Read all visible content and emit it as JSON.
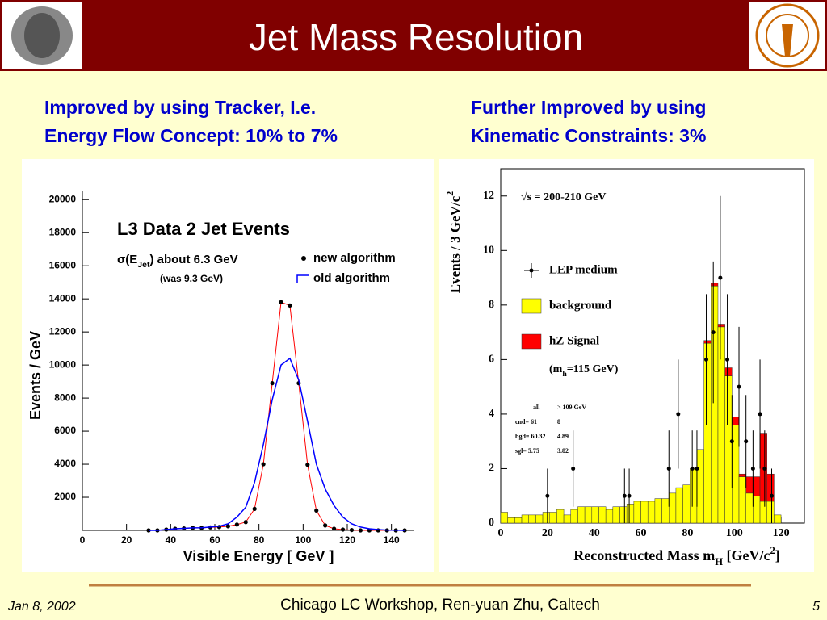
{
  "slide": {
    "title": "Jet Mass Resolution",
    "left_caption": [
      "Improved by using Tracker, I.e.",
      "Energy Flow Concept: 10% to 7%"
    ],
    "right_caption": [
      "Further Improved by using",
      "Kinematic Constraints: 3%"
    ],
    "footer": {
      "date": "Jan 8, 2002",
      "center": "Chicago LC Workshop, Ren-yuan Zhu, Caltech",
      "page": "5"
    }
  },
  "chart_data": [
    {
      "type": "line",
      "title": "L3 Data 2 Jet Events",
      "annotations": {
        "sigma": [
          "σ(E",
          "Jet",
          ") about 6.3 GeV"
        ],
        "was": "(was 9.3 GeV)"
      },
      "x_label": "Visible Energy [ GeV ]",
      "y_label": "Events / GeV",
      "x": [
        30,
        34,
        38,
        42,
        46,
        50,
        54,
        58,
        62,
        66,
        70,
        74,
        78,
        82,
        86,
        90,
        94,
        98,
        102,
        106,
        110,
        114,
        118,
        122,
        126,
        130,
        134,
        138,
        142,
        146
      ],
      "series": [
        {
          "name": "new algorithm",
          "color": "#000000",
          "fit_color": "#ff0000",
          "marker": "dot",
          "values": [
            0,
            0,
            50,
            100,
            120,
            150,
            150,
            180,
            200,
            250,
            350,
            500,
            1300,
            4000,
            8900,
            13800,
            13600,
            8900,
            3970,
            1200,
            300,
            100,
            50,
            20,
            0,
            0,
            0,
            0,
            0,
            0
          ]
        },
        {
          "name": "old algorithm",
          "color": "#0000ff",
          "marker": "none",
          "values": [
            0,
            0,
            50,
            100,
            120,
            150,
            160,
            200,
            250,
            400,
            800,
            1400,
            2900,
            5200,
            7900,
            10000,
            10400,
            9100,
            6600,
            4000,
            2500,
            1500,
            800,
            400,
            200,
            100,
            50,
            20,
            10,
            0
          ]
        }
      ],
      "xlim": [
        0,
        150
      ],
      "xticks": [
        0,
        20,
        40,
        60,
        80,
        100,
        120,
        140
      ],
      "ylim": [
        0,
        20500
      ],
      "yticks": [
        2000,
        4000,
        6000,
        8000,
        10000,
        12000,
        14000,
        16000,
        18000,
        20000
      ]
    },
    {
      "type": "histogram",
      "annotations": {
        "energy": "√s = 200-210 GeV",
        "mass": [
          "(m",
          "h",
          "=115 GeV)"
        ]
      },
      "table": [
        [
          "all",
          "> 109 GeV"
        ],
        [
          "cnd= 61",
          "8"
        ],
        [
          "bgd= 60.32",
          "4.89"
        ],
        [
          "sgl=  5.75",
          "3.82"
        ]
      ],
      "x_label": [
        "Reconstructed Mass m",
        "H",
        " [GeV/c",
        "2",
        "]"
      ],
      "y_label": [
        "Events / 3 GeV/c",
        "2"
      ],
      "bins": [
        0,
        3,
        6,
        9,
        12,
        15,
        18,
        21,
        24,
        27,
        30,
        33,
        36,
        39,
        42,
        45,
        48,
        51,
        54,
        57,
        60,
        63,
        66,
        69,
        72,
        75,
        78,
        81,
        84,
        87,
        90,
        93,
        96,
        99,
        102,
        105,
        108,
        111,
        114,
        117,
        120,
        123
      ],
      "series": [
        {
          "name": "LEP medium",
          "color": "#000000",
          "marker": "cross",
          "x": [
            20,
            31,
            53,
            55,
            72,
            76,
            82,
            84,
            88,
            91,
            94,
            97,
            99,
            102,
            105,
            108,
            111,
            113,
            116
          ],
          "values": [
            1,
            2,
            1,
            1,
            2,
            4,
            2,
            2,
            6,
            7,
            9,
            6,
            3,
            5,
            3,
            2,
            4,
            2,
            1
          ],
          "errors": [
            1,
            1.4,
            1,
            1,
            1.4,
            2,
            1.4,
            1.4,
            2.4,
            2.6,
            3,
            2.4,
            1.7,
            2.2,
            1.7,
            1.4,
            2,
            1.4,
            1
          ]
        },
        {
          "name": "background",
          "color": "#ffff00",
          "values": [
            0.4,
            0.2,
            0.2,
            0.3,
            0.3,
            0.3,
            0.4,
            0.4,
            0.5,
            0.3,
            0.5,
            0.6,
            0.6,
            0.6,
            0.6,
            0.5,
            0.6,
            0.6,
            0.7,
            0.8,
            0.8,
            0.8,
            0.9,
            0.9,
            1.1,
            1.3,
            1.4,
            2.0,
            2.7,
            6.6,
            8.7,
            7.2,
            5.4,
            3.6,
            1.7,
            1.1,
            1.0,
            0.8,
            0.8,
            0.3,
            0
          ]
        },
        {
          "name": "hZ Signal",
          "color": "#ff0000",
          "values": [
            0,
            0,
            0,
            0,
            0,
            0,
            0,
            0,
            0,
            0,
            0,
            0,
            0,
            0,
            0,
            0,
            0,
            0,
            0,
            0,
            0,
            0,
            0,
            0,
            0,
            0,
            0,
            0,
            0,
            0.1,
            0.1,
            0.1,
            0.3,
            0.3,
            0.1,
            0.6,
            0.7,
            2.5,
            1.0,
            0,
            0
          ]
        }
      ],
      "xlim": [
        0,
        130
      ],
      "xticks": [
        0,
        20,
        40,
        60,
        80,
        100,
        120
      ],
      "ylim": [
        0,
        13
      ],
      "yticks": [
        0,
        2,
        4,
        6,
        8,
        10,
        12
      ]
    }
  ]
}
